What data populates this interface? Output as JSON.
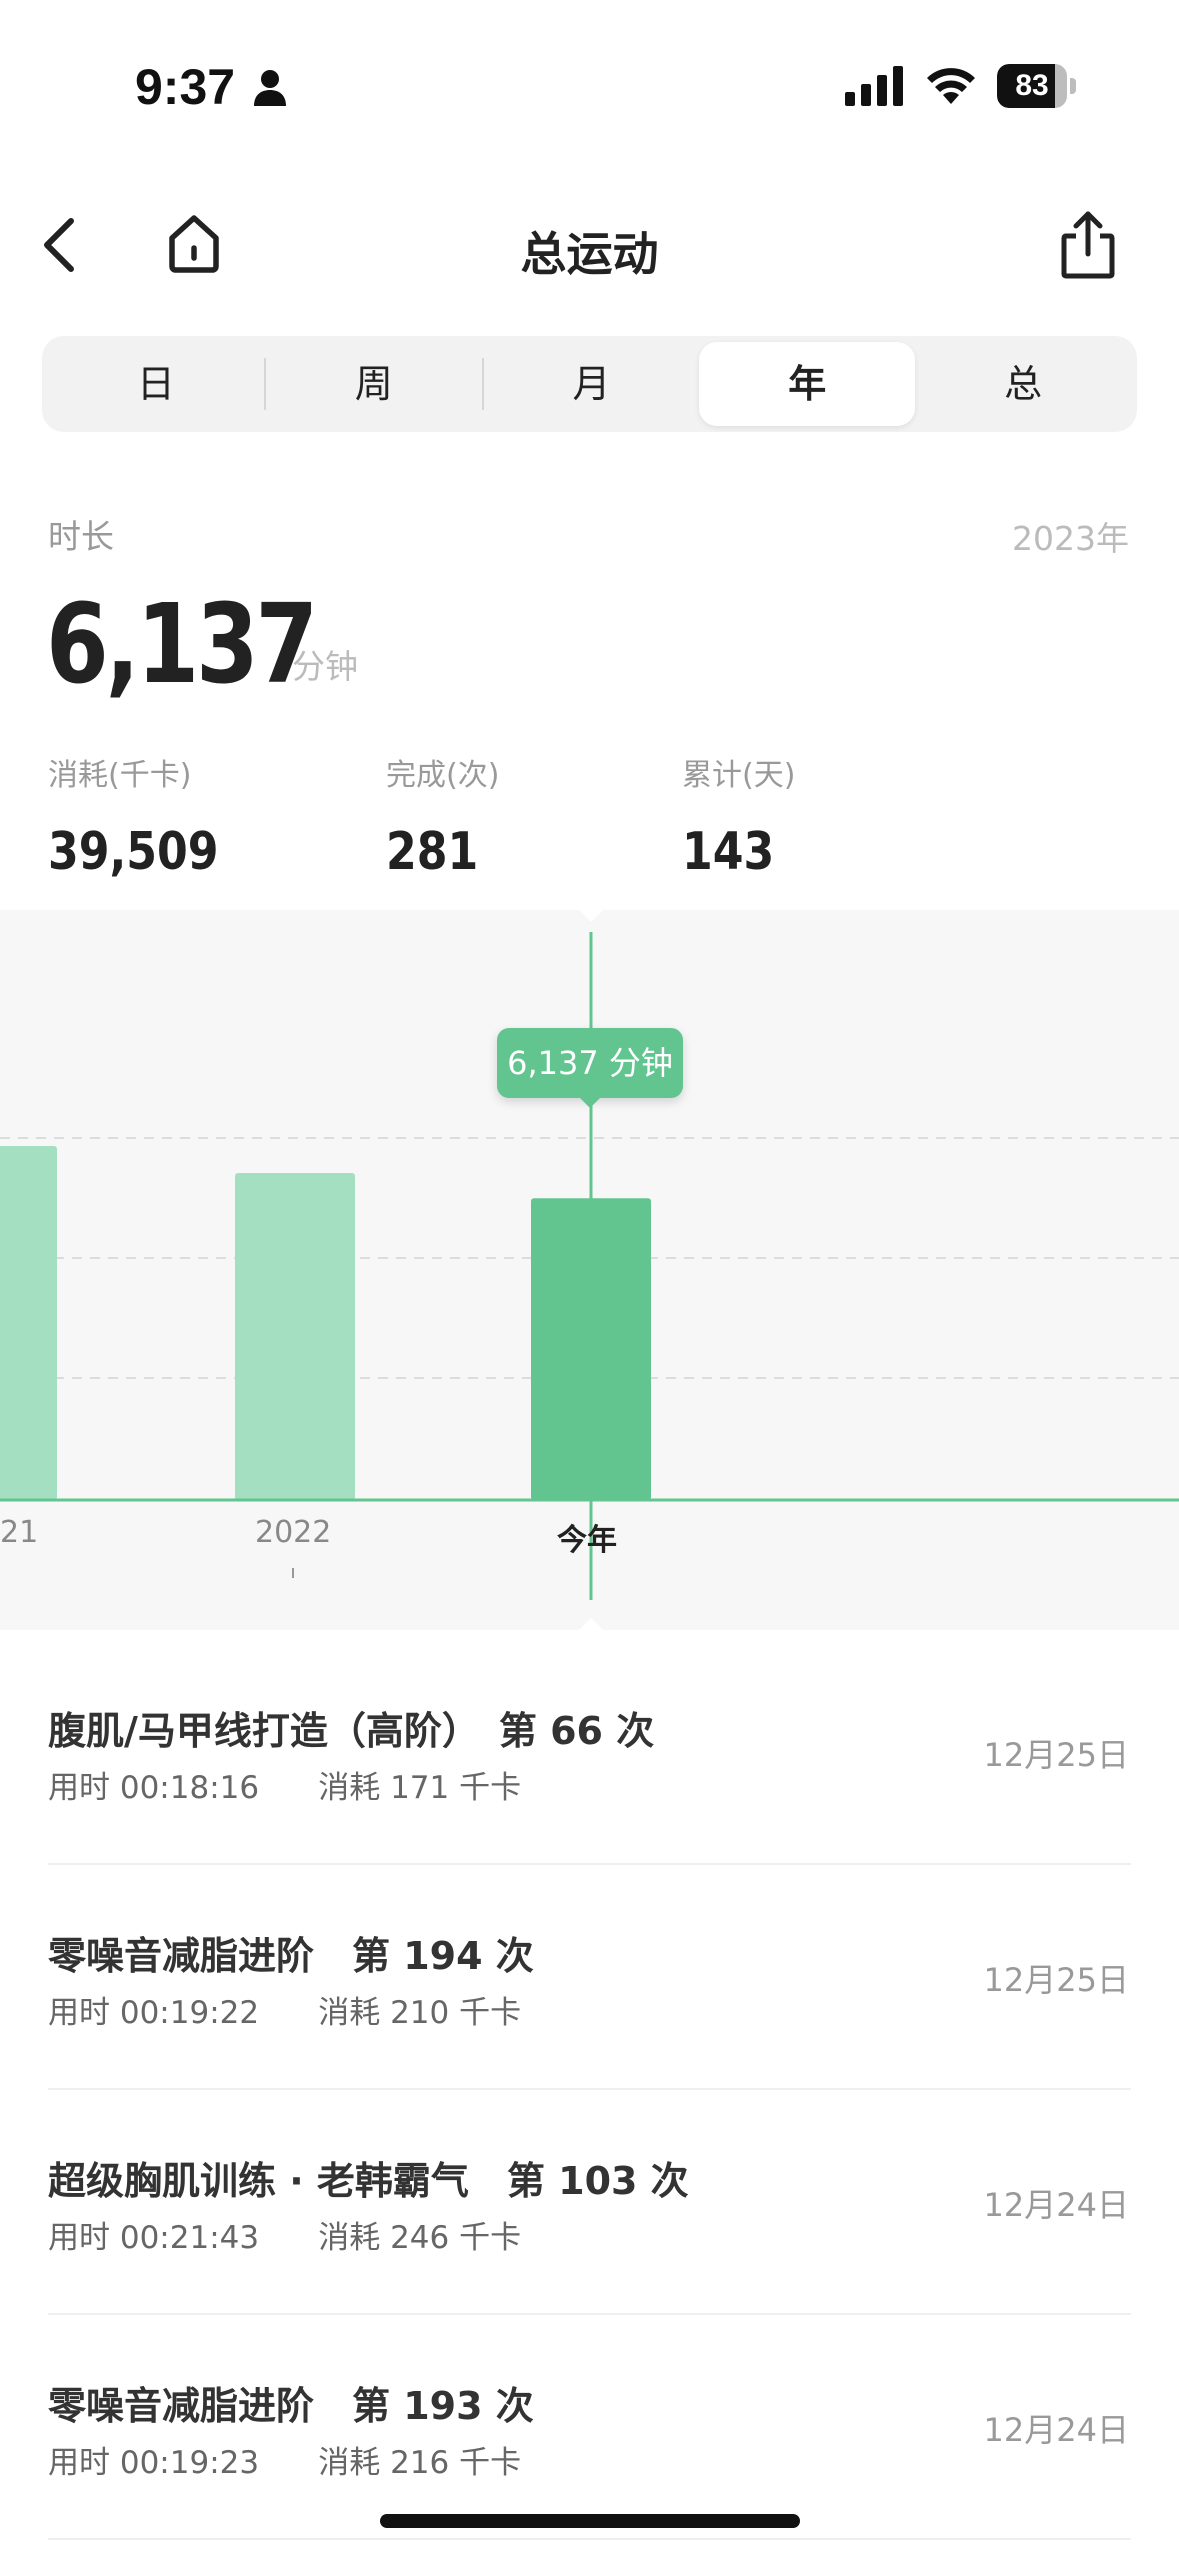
{
  "status_bar": {
    "time": "9:37",
    "battery_level": "83",
    "battery_fraction": 0.83
  },
  "nav": {
    "title": "总运动"
  },
  "tabs": [
    {
      "label": "日",
      "active": false
    },
    {
      "label": "周",
      "active": false
    },
    {
      "label": "月",
      "active": false
    },
    {
      "label": "年",
      "active": true
    },
    {
      "label": "总",
      "active": false
    }
  ],
  "summary": {
    "label": "时长",
    "year": "2023年",
    "value": "6,137",
    "unit": "分钟",
    "stats": [
      {
        "label": "消耗(千卡)",
        "value": "39,509"
      },
      {
        "label": "完成(次)",
        "value": "281"
      },
      {
        "label": "累计(天)",
        "value": "143"
      }
    ]
  },
  "chart_data": {
    "type": "bar",
    "categories": [
      "21",
      "2022",
      "今年"
    ],
    "values": [
      7200,
      6650,
      6137
    ],
    "selected_index": 2,
    "tooltip": "6,137 分钟",
    "ylim": [
      0,
      12000
    ],
    "grid": true,
    "colors": {
      "bar": "#a3dfc0",
      "bar_selected": "#62c590",
      "baseline": "#62c590"
    }
  },
  "activities": [
    {
      "title": "腹肌/马甲线打造（高阶）　第 66 次",
      "duration": "用时 00:18:16",
      "calories": "消耗 171 千卡",
      "date": "12月25日"
    },
    {
      "title": "零噪音减脂进阶　第 194 次",
      "duration": "用时 00:19:22",
      "calories": "消耗 210 千卡",
      "date": "12月25日"
    },
    {
      "title": "超级胸肌训练 · 老韩霸气　第 103 次",
      "duration": "用时 00:21:43",
      "calories": "消耗 246 千卡",
      "date": "12月24日"
    },
    {
      "title": "零噪音减脂进阶　第 193 次",
      "duration": "用时 00:19:23",
      "calories": "消耗 216 千卡",
      "date": "12月24日"
    }
  ]
}
